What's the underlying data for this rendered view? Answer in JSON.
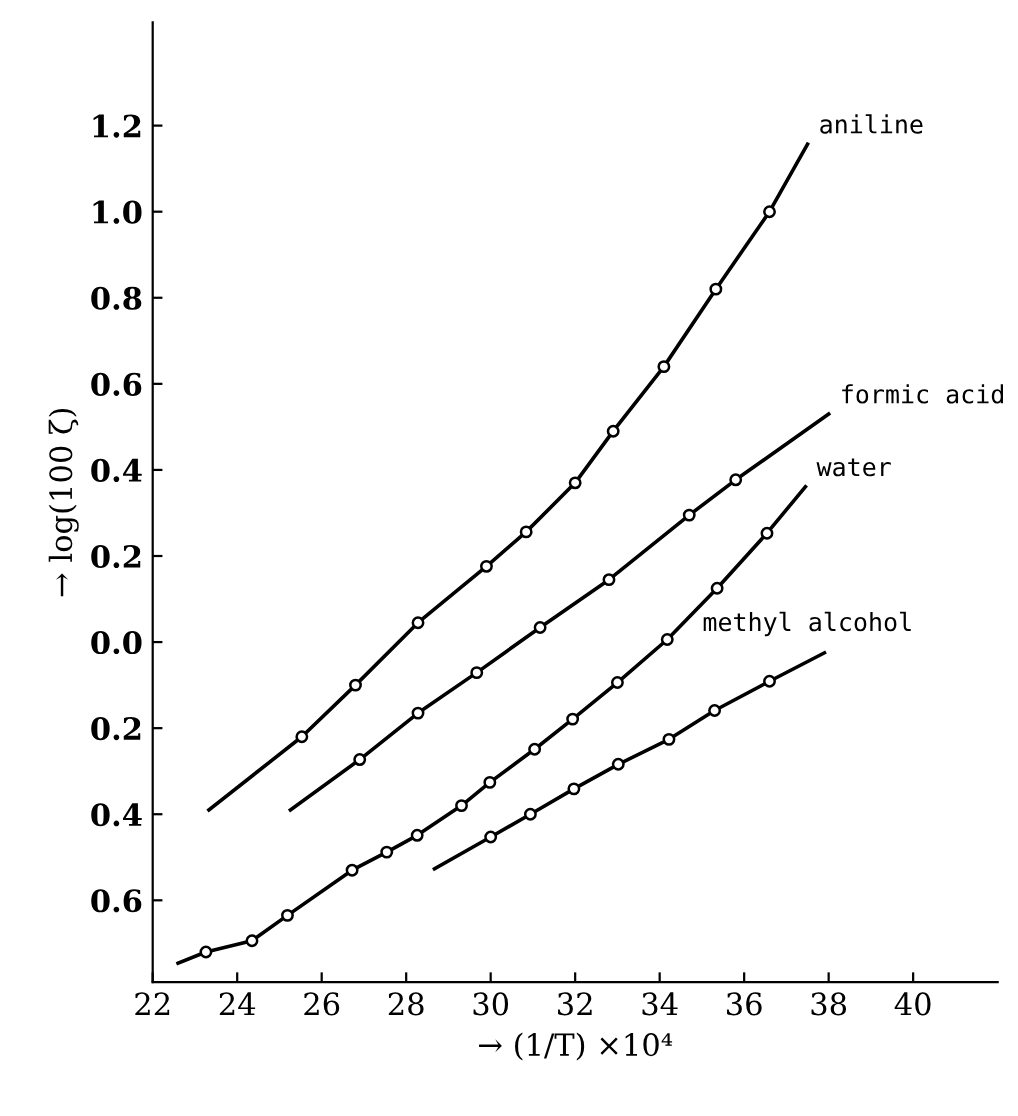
{
  "chart_data": {
    "type": "line",
    "xlabel": "→ (1/T) ×10⁴",
    "ylabel": "→ log(100 ζ)",
    "xlim": [
      22,
      42
    ],
    "ylim": [
      -0.79,
      1.44
    ],
    "xticks": [
      22,
      24,
      26,
      28,
      30,
      32,
      34,
      36,
      38,
      40
    ],
    "yticks": [
      1.2,
      {
        "value": 1.0,
        "label": "1.0"
      },
      0.8,
      0.6,
      0.4,
      0.2,
      {
        "value": 0.0,
        "label": "0.0"
      },
      {
        "value": -0.2,
        "label": "0.2"
      },
      {
        "value": -0.4,
        "label": "0.4"
      },
      {
        "value": -0.6,
        "label": "0.6"
      }
    ],
    "grid": false,
    "legend": false,
    "series": [
      {
        "name": "aniline",
        "color": "#000000",
        "marker": "none",
        "x": [
          23.33,
          25.53,
          26.8,
          28.28,
          29.9,
          30.84,
          32.0,
          32.9,
          34.1,
          35.33,
          36.6,
          37.5
        ],
        "values": [
          -0.39,
          -0.22,
          -0.1,
          0.045,
          0.176,
          0.256,
          0.37,
          0.49,
          0.64,
          0.82,
          1.0,
          1.157
        ]
      },
      {
        "type": "scatter",
        "color": "#000000",
        "marker": "circle",
        "x": [
          25.53,
          26.8,
          28.28,
          29.9,
          30.84,
          32.0,
          32.9,
          34.1,
          35.33,
          36.6
        ],
        "values": [
          -0.22,
          -0.1,
          0.045,
          0.176,
          0.256,
          0.37,
          0.49,
          0.64,
          0.82,
          1.0
        ]
      },
      {
        "name": "formic acid",
        "color": "#000000",
        "marker": "none",
        "x": [
          25.26,
          26.9,
          28.28,
          29.67,
          31.17,
          32.8,
          34.7,
          35.8,
          38.0
        ],
        "values": [
          -0.39,
          -0.273,
          -0.165,
          -0.071,
          0.034,
          0.145,
          0.295,
          0.377,
          0.53
        ]
      },
      {
        "type": "scatter",
        "color": "#000000",
        "marker": "circle",
        "x": [
          26.9,
          28.28,
          29.67,
          31.17,
          32.8,
          34.7,
          35.8
        ],
        "values": [
          -0.273,
          -0.165,
          -0.071,
          0.034,
          0.145,
          0.295,
          0.377
        ]
      },
      {
        "name": "water",
        "color": "#000000",
        "marker": "none",
        "x": [
          22.6,
          23.26,
          24.35,
          25.19,
          26.72,
          27.54,
          28.26,
          29.31,
          29.98,
          31.04,
          31.94,
          33.0,
          34.18,
          35.36,
          36.54,
          37.45
        ],
        "values": [
          -0.746,
          -0.72,
          -0.694,
          -0.635,
          -0.53,
          -0.488,
          -0.449,
          -0.38,
          -0.326,
          -0.249,
          -0.179,
          -0.094,
          0.006,
          0.125,
          0.253,
          0.361
        ]
      },
      {
        "type": "scatter",
        "color": "#000000",
        "marker": "circle",
        "x": [
          23.26,
          24.35,
          25.19,
          26.72,
          27.54,
          28.26,
          29.31,
          29.98,
          31.04,
          31.94,
          33.0,
          34.18,
          35.36,
          36.54
        ],
        "values": [
          -0.72,
          -0.694,
          -0.635,
          -0.53,
          -0.488,
          -0.449,
          -0.38,
          -0.326,
          -0.249,
          -0.179,
          -0.094,
          0.006,
          0.125,
          0.253
        ]
      },
      {
        "name": "methyl alcohol",
        "color": "#000000",
        "marker": "none",
        "x": [
          28.67,
          30.0,
          30.94,
          31.97,
          33.02,
          34.22,
          35.3,
          36.6,
          37.9
        ],
        "values": [
          -0.527,
          -0.453,
          -0.4,
          -0.341,
          -0.284,
          -0.226,
          -0.159,
          -0.091,
          -0.025
        ]
      },
      {
        "type": "scatter",
        "color": "#000000",
        "marker": "circle",
        "x": [
          30.0,
          30.94,
          31.97,
          33.02,
          34.22,
          35.3,
          36.6
        ],
        "values": [
          -0.453,
          -0.4,
          -0.341,
          -0.284,
          -0.226,
          -0.159,
          -0.091
        ]
      }
    ]
  }
}
